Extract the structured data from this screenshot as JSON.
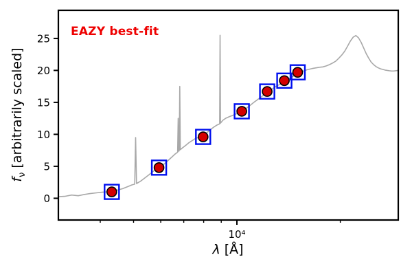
{
  "annotation": {
    "text": "EAZY best-fit",
    "color": "#ee0000"
  },
  "labels": {
    "y_f": "f",
    "y_sub": "ν",
    "y_rest": " [arbitrarily scaled]",
    "x_lambda": "λ",
    "x_rest": " [Å]"
  },
  "chart_data": {
    "type": "line",
    "title": "EAZY best-fit",
    "xlabel": "λ [Å]",
    "ylabel": "f_ν [arbitrarily scaled]",
    "x_scale": "log",
    "xlim": [
      3020,
      29500
    ],
    "ylim": [
      -3.4,
      29.4
    ],
    "yticks": [
      0,
      5,
      10,
      15,
      20,
      25
    ],
    "xtick_major": {
      "value": 10000,
      "label": "10⁴"
    },
    "xticks_minor": [
      4000,
      5000,
      6000,
      7000,
      8000,
      9000,
      20000
    ],
    "grid": false,
    "legend": "none",
    "colors": {
      "spectrum": "#a8a8a8",
      "square": "#0010ee",
      "circle_fill": "#d40000",
      "circle_edge": "#000000",
      "frame": "#000000"
    },
    "series": [
      {
        "name": "model-spectrum",
        "style": "gray line with emission-line spikes"
      },
      {
        "name": "template-photometry",
        "style": "open blue squares"
      },
      {
        "name": "observed-photometry",
        "style": "red filled circles, black edge"
      }
    ],
    "spectrum": {
      "lambda": [
        3020,
        3150,
        3300,
        3450,
        3600,
        3750,
        3900,
        4050,
        4200,
        4350,
        4500,
        4650,
        4800,
        4950,
        5040,
        5070,
        5100,
        5250,
        5400,
        5550,
        5700,
        5850,
        6000,
        6150,
        6300,
        6450,
        6600,
        6720,
        6745,
        6770,
        6790,
        6815,
        6840,
        6950,
        7100,
        7250,
        7400,
        7550,
        7700,
        7850,
        8000,
        8150,
        8300,
        8450,
        8600,
        8750,
        8905,
        8930,
        8955,
        9100,
        9300,
        9500,
        9700,
        9900,
        10100,
        10350,
        10600,
        10900,
        11200,
        11500,
        11800,
        12100,
        12400,
        12700,
        13000,
        13300,
        13600,
        13900,
        14200,
        14500,
        14800,
        15100,
        15400,
        15700,
        16000,
        16300,
        16600,
        17000,
        17400,
        17800,
        18200,
        18600,
        19000,
        19400,
        19800,
        20200,
        20600,
        21000,
        21400,
        21800,
        22200,
        22600,
        23000,
        23400,
        23800,
        24200,
        24600,
        25000,
        25400,
        25800,
        26200,
        26600,
        27000,
        27400,
        27800,
        28200,
        28600,
        29000,
        29500
      ],
      "flux": [
        0.25,
        0.3,
        0.5,
        0.4,
        0.6,
        0.75,
        0.85,
        0.95,
        1.0,
        1.05,
        1.3,
        1.5,
        1.8,
        2.1,
        2.2,
        9.5,
        2.3,
        2.7,
        3.2,
        3.7,
        4.2,
        4.6,
        5.0,
        5.4,
        5.9,
        6.4,
        6.9,
        7.2,
        12.5,
        7.35,
        7.45,
        17.5,
        7.6,
        7.9,
        8.3,
        8.7,
        9.0,
        9.3,
        9.5,
        9.65,
        9.85,
        10.2,
        10.55,
        10.9,
        11.2,
        11.45,
        11.65,
        25.5,
        11.75,
        12.2,
        12.55,
        12.75,
        12.95,
        13.15,
        13.35,
        13.6,
        14.0,
        14.5,
        15.0,
        15.45,
        15.9,
        16.35,
        16.8,
        17.15,
        17.5,
        17.8,
        18.1,
        18.4,
        18.7,
        19.0,
        19.3,
        19.55,
        19.75,
        19.95,
        20.1,
        20.2,
        20.3,
        20.4,
        20.5,
        20.55,
        20.7,
        20.9,
        21.15,
        21.45,
        21.9,
        22.4,
        23.0,
        23.8,
        24.6,
        25.2,
        25.45,
        25.1,
        24.4,
        23.5,
        22.6,
        21.9,
        21.3,
        20.9,
        20.6,
        20.4,
        20.25,
        20.15,
        20.05,
        20.0,
        19.95,
        19.9,
        19.9,
        19.95,
        20.0
      ]
    },
    "photometry": {
      "lambda": [
        4320,
        5930,
        7970,
        10330,
        12250,
        13740,
        15030
      ],
      "flux": [
        1.0,
        4.8,
        9.6,
        13.6,
        16.7,
        18.4,
        19.7
      ]
    }
  }
}
